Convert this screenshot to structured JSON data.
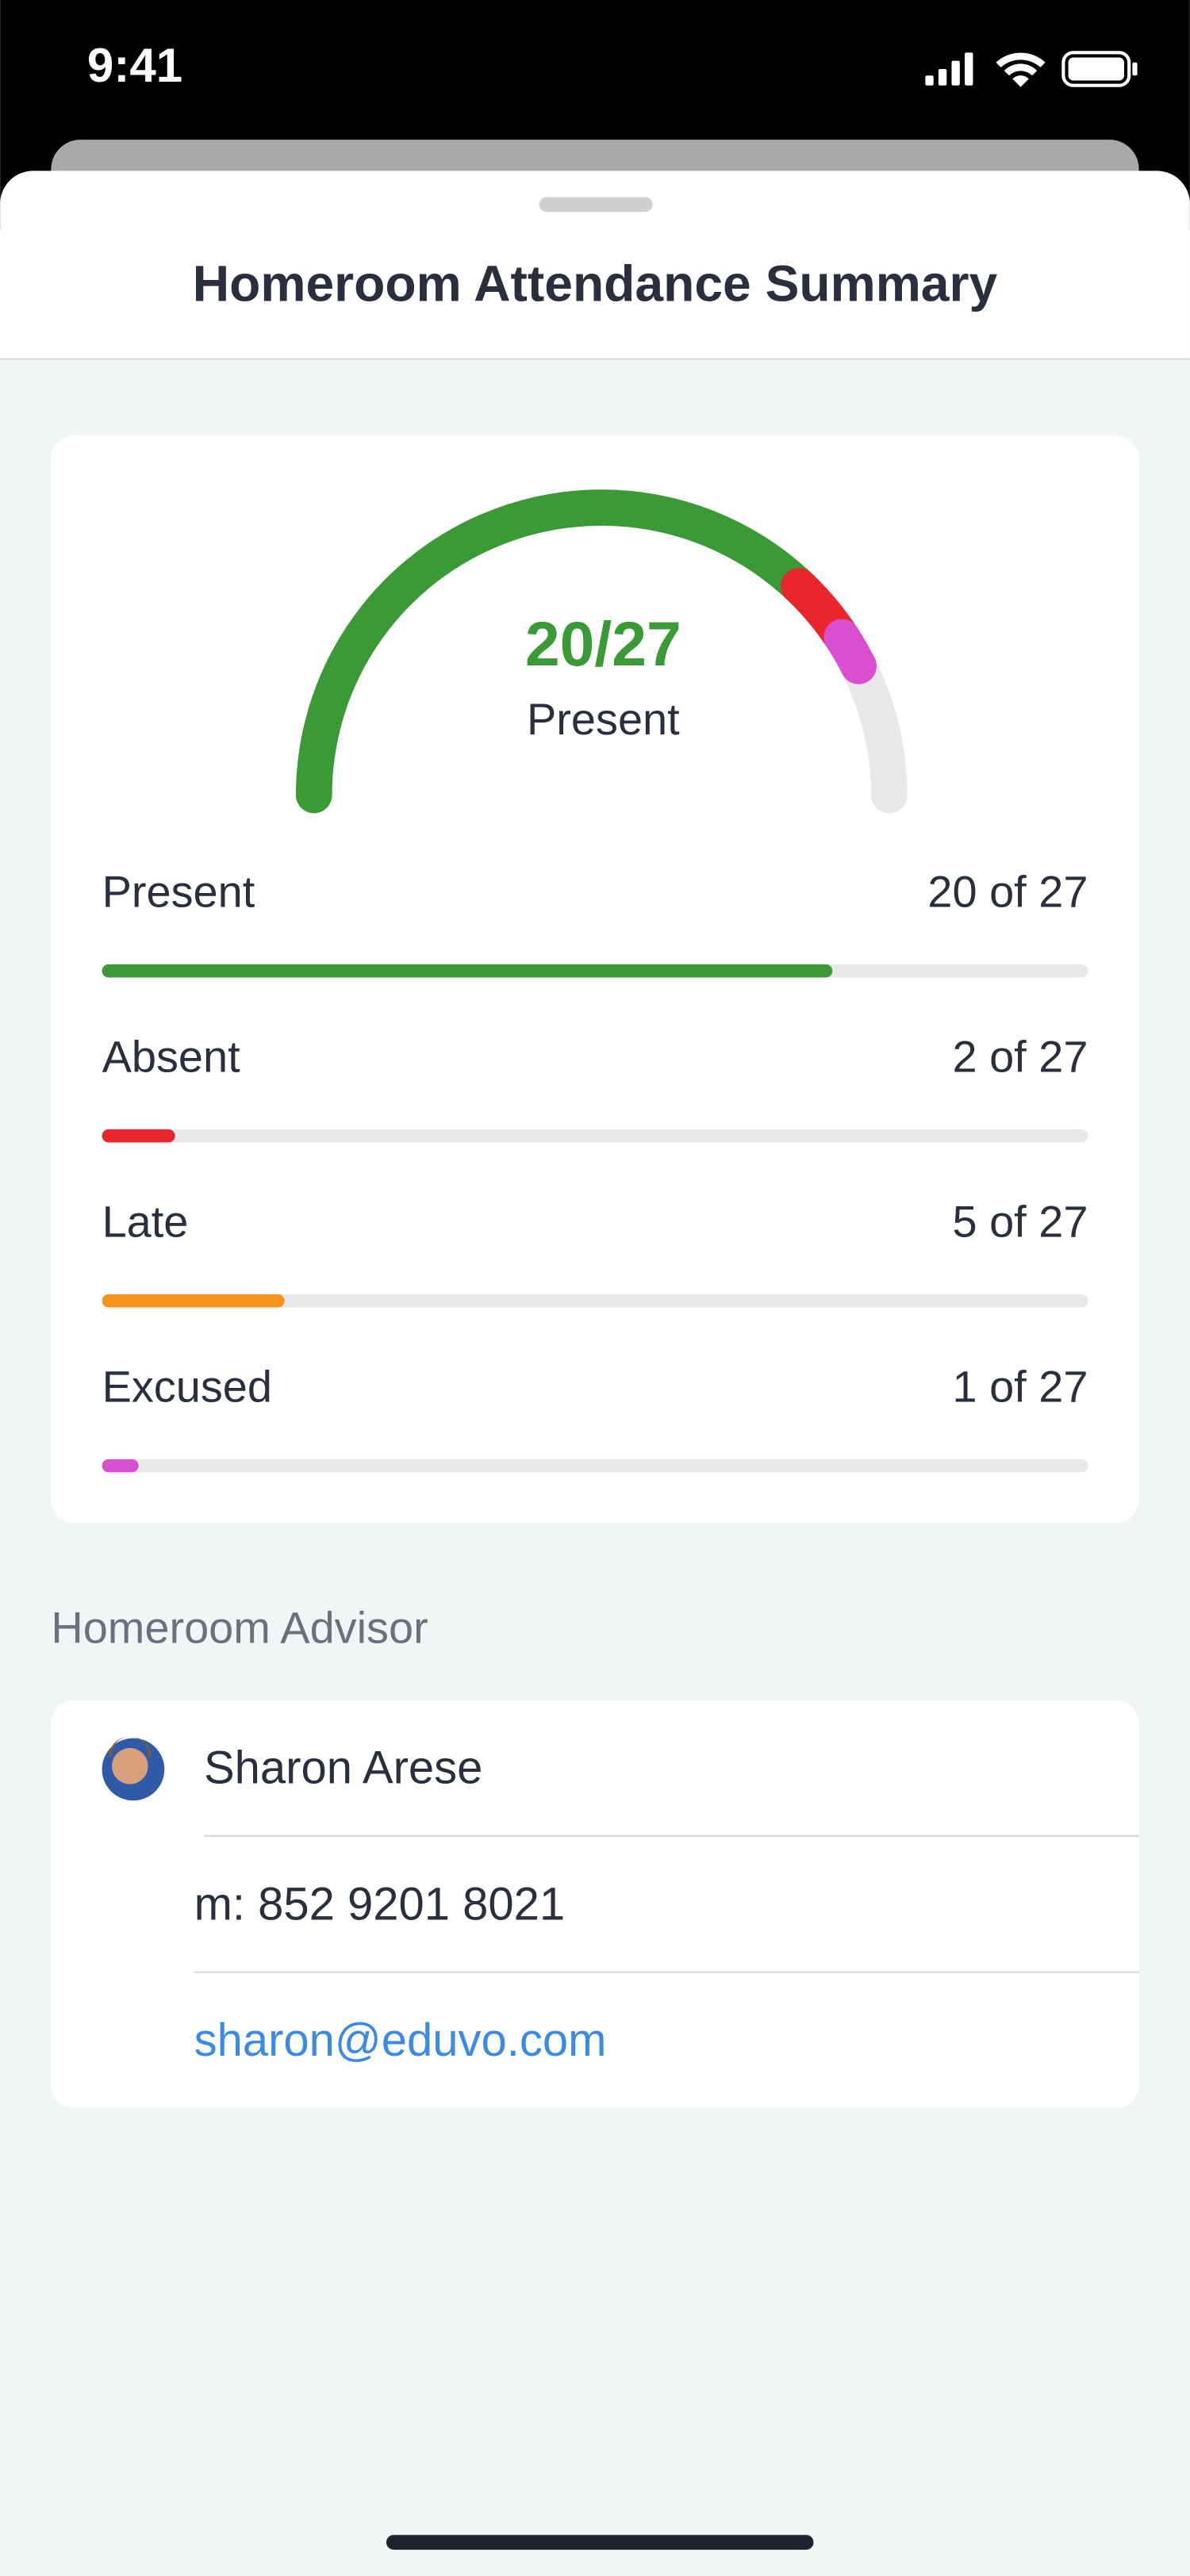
{
  "status_bar": {
    "time": "9:41"
  },
  "header": {
    "title": "Homeroom Attendance Summary"
  },
  "summary": {
    "total": 27,
    "gauge": {
      "headline": "20/27",
      "caption": "Present",
      "segments": [
        {
          "value": 20,
          "color": "#3a9a35"
        },
        {
          "value": 2,
          "color": "#e8262c"
        },
        {
          "value": 1,
          "color": "#da4fcf"
        }
      ]
    },
    "rows": [
      {
        "label": "Present",
        "value": 20,
        "value_label": "20 of 27",
        "color": "#3a9a35"
      },
      {
        "label": "Absent",
        "value": 2,
        "value_label": "2 of 27",
        "color": "#e8262c"
      },
      {
        "label": "Late",
        "value": 5,
        "value_label": "5 of 27",
        "color": "#f7941d"
      },
      {
        "label": "Excused",
        "value": 1,
        "value_label": "1 of 27",
        "color": "#da4fcf"
      }
    ]
  },
  "advisor": {
    "section_title": "Homeroom Advisor",
    "name": "Sharon Arese",
    "phone": "m: 852 9201 8021",
    "email": "sharon@eduvo.com"
  }
}
